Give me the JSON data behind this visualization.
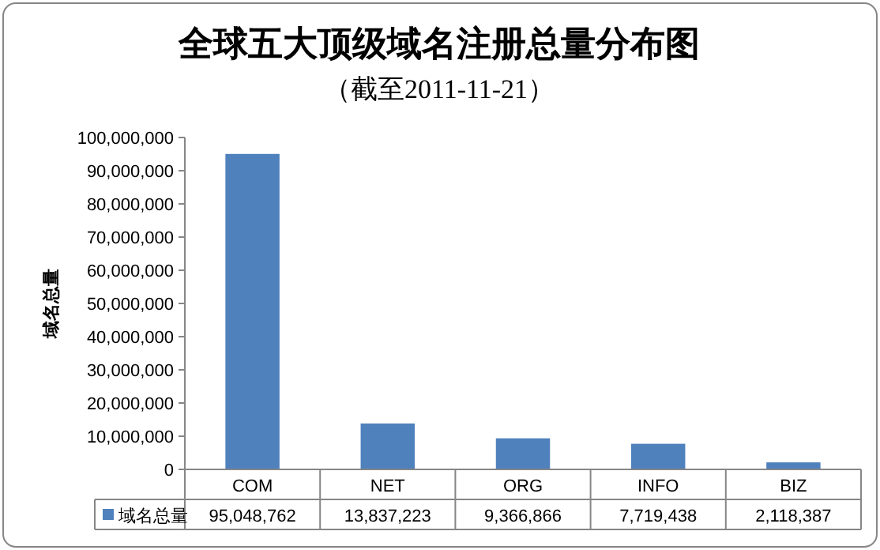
{
  "chart_data": {
    "type": "bar",
    "title": "全球五大顶级域名注册总量分布图",
    "subtitle": "（截至2011-11-21）",
    "ylabel": "域名总量",
    "categories": [
      "COM",
      "NET",
      "ORG",
      "INFO",
      "BIZ"
    ],
    "series": [
      {
        "name": "域名总量",
        "color": "#4f81bd",
        "values": [
          95048762,
          13837223,
          9366866,
          7719438,
          2118387
        ],
        "value_labels": [
          "95,048,762",
          "13,837,223",
          "9,366,866",
          "7,719,438",
          "2,118,387"
        ]
      }
    ],
    "ylim": [
      0,
      100000000
    ],
    "yticks": [
      {
        "value": 0,
        "label": "0"
      },
      {
        "value": 10000000,
        "label": "10,000,000"
      },
      {
        "value": 20000000,
        "label": "20,000,000"
      },
      {
        "value": 30000000,
        "label": "30,000,000"
      },
      {
        "value": 40000000,
        "label": "40,000,000"
      },
      {
        "value": 50000000,
        "label": "50,000,000"
      },
      {
        "value": 60000000,
        "label": "60,000,000"
      },
      {
        "value": 70000000,
        "label": "70,000,000"
      },
      {
        "value": 80000000,
        "label": "80,000,000"
      },
      {
        "value": 90000000,
        "label": "90,000,000"
      },
      {
        "value": 100000000,
        "label": "100,000,000"
      }
    ],
    "legend": "bottom"
  }
}
